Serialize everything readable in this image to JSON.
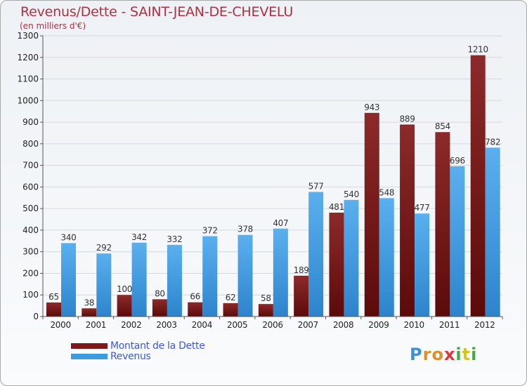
{
  "chart_data": {
    "type": "bar",
    "title": "Revenus/Dette - SAINT-JEAN-DE-CHEVELU",
    "subtitle": "(en milliers d'€)",
    "categories": [
      "2000",
      "2001",
      "2002",
      "2003",
      "2004",
      "2005",
      "2006",
      "2007",
      "2008",
      "2009",
      "2010",
      "2011",
      "2012"
    ],
    "series": [
      {
        "name": "Montant de la Dette",
        "color": "#7a1a1a",
        "values": [
          65,
          38,
          100,
          80,
          66,
          62,
          58,
          189,
          481,
          943,
          889,
          854,
          1210
        ]
      },
      {
        "name": "Revenus",
        "color": "#3d9be0",
        "values": [
          340,
          292,
          342,
          332,
          372,
          378,
          407,
          577,
          540,
          548,
          477,
          696,
          782
        ]
      }
    ],
    "ylim": [
      0,
      1300
    ],
    "yticks": [
      0,
      100,
      200,
      300,
      400,
      500,
      600,
      700,
      800,
      900,
      1000,
      1100,
      1200,
      1300
    ],
    "grid": true,
    "legend_position": "bottom-left"
  },
  "logo": {
    "letters": [
      {
        "ch": "P",
        "color": "#3d8fd8"
      },
      {
        "ch": "r",
        "color": "#e0902a"
      },
      {
        "ch": "o",
        "color": "#e0902a"
      },
      {
        "ch": "x",
        "color": "#d83a3a"
      },
      {
        "ch": "i",
        "color": "#48a848"
      },
      {
        "ch": "t",
        "color": "#d8c22a"
      },
      {
        "ch": "i",
        "color": "#48a848"
      }
    ]
  }
}
